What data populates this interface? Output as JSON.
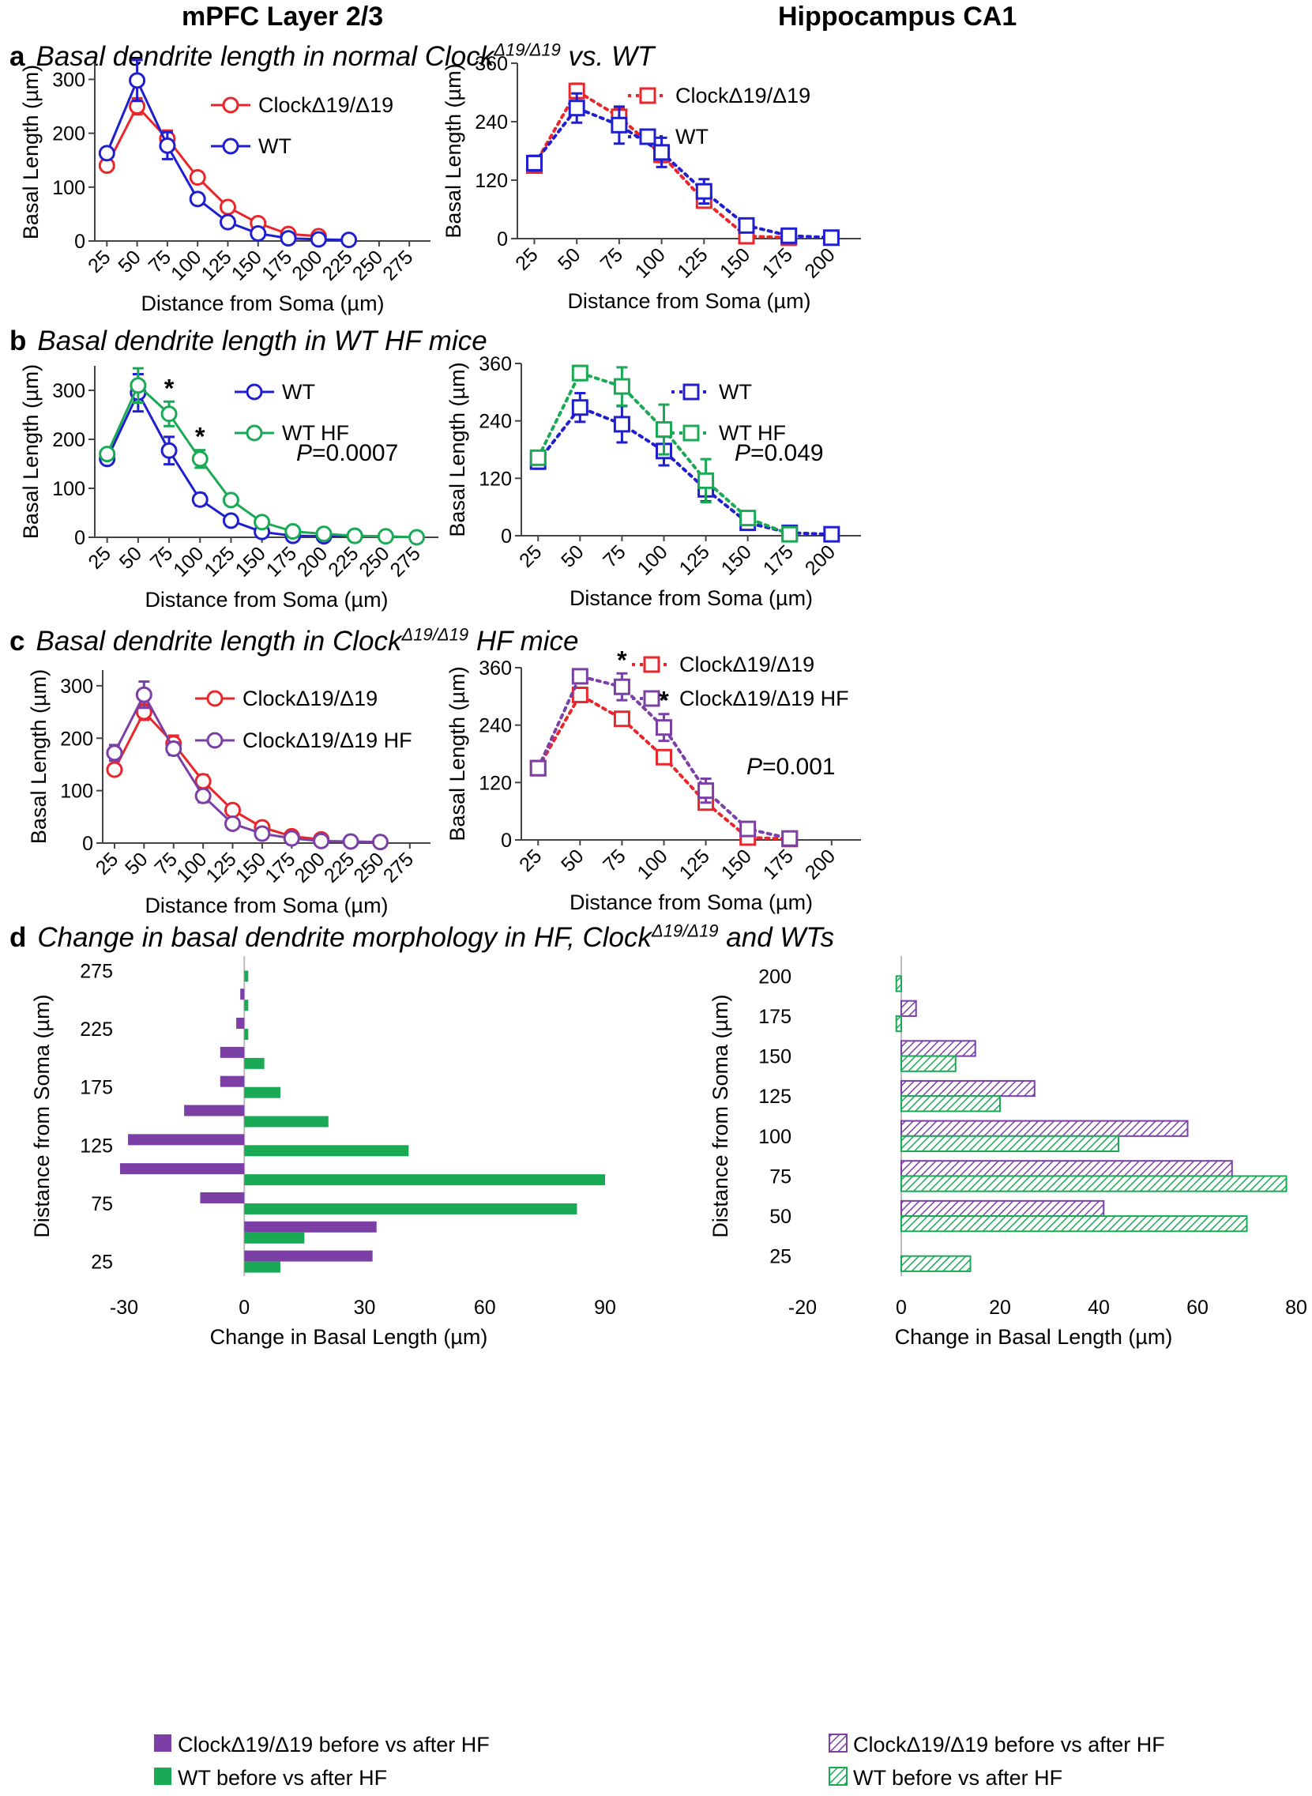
{
  "figure": {
    "columns": {
      "left": "mPFC Layer 2/3",
      "right": "Hippocampus CA1"
    },
    "panels": [
      {
        "letter": "a",
        "title": "Basal dendrite length in normal Clock",
        "sup": "Δ19/Δ19",
        "suffix": " vs. WT"
      },
      {
        "letter": "b",
        "title": "Basal dendrite length in WT HF mice",
        "sup": "",
        "suffix": ""
      },
      {
        "letter": "c",
        "title": "Basal dendrite length in Clock",
        "sup": "Δ19/Δ19",
        "suffix": " HF mice"
      },
      {
        "letter": "d",
        "title": "Change in basal dendrite morphology in HF, Clock",
        "sup": "Δ19/Δ19",
        "suffix": " and WTs"
      }
    ]
  },
  "chart_data": [
    {
      "id": "a-left",
      "type": "line",
      "xlabel": "Distance from Soma (µm)",
      "ylabel": "Basal Length (µm)",
      "categories": [
        "25",
        "50",
        "75",
        "100",
        "125",
        "150",
        "175",
        "200",
        "225",
        "250",
        "275"
      ],
      "ylim": [
        0,
        330
      ],
      "yticks": [
        0,
        100,
        200,
        300
      ],
      "legend_position": "top-right",
      "series": [
        {
          "name": "ClockΔ19/Δ19",
          "color": "#e8262b",
          "marker": "circle",
          "dash": "solid",
          "values": [
            140,
            250,
            190,
            118,
            63,
            33,
            13,
            9,
            null,
            null,
            null
          ],
          "errors": [
            5,
            15,
            15,
            10,
            7,
            5,
            3,
            3,
            null,
            null,
            null
          ]
        },
        {
          "name": "WT",
          "color": "#1f1fcf",
          "marker": "circle",
          "dash": "solid",
          "values": [
            163,
            298,
            177,
            78,
            35,
            14,
            5,
            3,
            2,
            null,
            null
          ],
          "errors": [
            7,
            38,
            25,
            10,
            5,
            4,
            2,
            2,
            1,
            null,
            null
          ]
        }
      ],
      "annotations": [],
      "pvalue": ""
    },
    {
      "id": "a-right",
      "type": "line",
      "xlabel": "Distance from Soma (µm)",
      "ylabel": "Basal Length (µm)",
      "categories": [
        "25",
        "50",
        "75",
        "100",
        "125",
        "150",
        "175",
        "200"
      ],
      "ylim": [
        0,
        360
      ],
      "yticks": [
        0,
        120,
        240,
        360
      ],
      "legend_position": "top-right",
      "series": [
        {
          "name": "ClockΔ19/Δ19",
          "color": "#e8262b",
          "marker": "square",
          "dash": "dotted",
          "values": [
            150,
            303,
            250,
            172,
            78,
            5,
            2,
            null
          ],
          "errors": [
            12,
            15,
            18,
            15,
            10,
            3,
            2,
            null
          ]
        },
        {
          "name": "WT",
          "color": "#1f1fcf",
          "marker": "square",
          "dash": "dotted",
          "values": [
            155,
            268,
            233,
            177,
            97,
            27,
            6,
            2
          ],
          "errors": [
            15,
            30,
            38,
            30,
            25,
            12,
            4,
            1
          ]
        }
      ],
      "annotations": [],
      "pvalue": ""
    },
    {
      "id": "b-left",
      "type": "line",
      "xlabel": "Distance from Soma (µm)",
      "ylabel": "Basal Length (µm)",
      "categories": [
        "25",
        "50",
        "75",
        "100",
        "125",
        "150",
        "175",
        "200",
        "225",
        "250",
        "275"
      ],
      "ylim": [
        0,
        350
      ],
      "yticks": [
        0,
        100,
        200,
        300
      ],
      "legend_position": "top-right",
      "series": [
        {
          "name": "WT",
          "color": "#1f1fcf",
          "marker": "circle",
          "dash": "solid",
          "values": [
            160,
            295,
            177,
            77,
            34,
            11,
            3,
            2,
            3,
            null,
            null
          ],
          "errors": [
            6,
            38,
            28,
            12,
            5,
            4,
            2,
            1,
            1,
            null,
            null
          ]
        },
        {
          "name": "WT HF",
          "color": "#1aaa55",
          "marker": "circle",
          "dash": "solid",
          "values": [
            170,
            310,
            252,
            160,
            76,
            31,
            12,
            7,
            3,
            2,
            0
          ],
          "errors": [
            8,
            35,
            25,
            18,
            8,
            8,
            4,
            3,
            2,
            1,
            0
          ]
        }
      ],
      "annotations": [
        {
          "text": "*",
          "category": "75"
        },
        {
          "text": "*",
          "category": "100"
        }
      ],
      "pvalue": "=0.0007"
    },
    {
      "id": "b-right",
      "type": "line",
      "xlabel": "Distance from Soma (µm)",
      "ylabel": "Basal Length (µm)",
      "categories": [
        "25",
        "50",
        "75",
        "100",
        "125",
        "150",
        "175",
        "200"
      ],
      "ylim": [
        0,
        360
      ],
      "yticks": [
        0,
        120,
        240,
        360
      ],
      "legend_position": "top-right",
      "series": [
        {
          "name": "WT",
          "color": "#1f1fcf",
          "marker": "square",
          "dash": "dotted",
          "values": [
            155,
            268,
            233,
            177,
            97,
            27,
            6,
            3
          ],
          "errors": [
            15,
            30,
            38,
            30,
            25,
            12,
            4,
            1
          ]
        },
        {
          "name": "WT HF",
          "color": "#1aaa55",
          "marker": "square",
          "dash": "dotted",
          "values": [
            163,
            340,
            312,
            222,
            115,
            37,
            3,
            null
          ],
          "errors": [
            10,
            15,
            40,
            52,
            45,
            12,
            2,
            null
          ]
        }
      ],
      "annotations": [],
      "pvalue": "=0.049"
    },
    {
      "id": "c-left",
      "type": "line",
      "xlabel": "Distance from Soma (µm)",
      "ylabel": "Basal Length (µm)",
      "categories": [
        "25",
        "50",
        "75",
        "100",
        "125",
        "150",
        "175",
        "200",
        "225",
        "250",
        "275"
      ],
      "ylim": [
        0,
        330
      ],
      "yticks": [
        0,
        100,
        200,
        300
      ],
      "legend_position": "top-right",
      "series": [
        {
          "name": "ClockΔ19/Δ19",
          "color": "#e8262b",
          "marker": "circle",
          "dash": "solid",
          "values": [
            140,
            250,
            190,
            118,
            63,
            30,
            13,
            7,
            null,
            null,
            null
          ],
          "errors": [
            5,
            15,
            15,
            12,
            7,
            5,
            3,
            2,
            null,
            null,
            null
          ]
        },
        {
          "name": "ClockΔ19/Δ19 HF",
          "color": "#7b3fa6",
          "marker": "circle",
          "dash": "solid",
          "values": [
            172,
            283,
            180,
            90,
            37,
            18,
            9,
            4,
            3,
            2,
            null
          ],
          "errors": [
            15,
            25,
            12,
            12,
            5,
            4,
            3,
            2,
            1,
            1,
            null
          ]
        }
      ],
      "annotations": [],
      "pvalue": ""
    },
    {
      "id": "c-right",
      "type": "line",
      "xlabel": "Distance from Soma (µm)",
      "ylabel": "Basal Length (µm)",
      "categories": [
        "25",
        "50",
        "75",
        "100",
        "125",
        "150",
        "175",
        "200"
      ],
      "ylim": [
        0,
        360
      ],
      "yticks": [
        0,
        120,
        240,
        360
      ],
      "legend_position": "top-right",
      "series": [
        {
          "name": "ClockΔ19/Δ19",
          "color": "#e8262b",
          "marker": "square",
          "dash": "dotted",
          "values": [
            150,
            303,
            253,
            173,
            78,
            5,
            2,
            null
          ],
          "errors": [
            8,
            15,
            10,
            10,
            8,
            3,
            2,
            null
          ]
        },
        {
          "name": "ClockΔ19/Δ19 HF",
          "color": "#7b3fa6",
          "marker": "square",
          "dash": "dotted",
          "values": [
            150,
            342,
            320,
            235,
            103,
            23,
            3,
            null
          ],
          "errors": [
            8,
            12,
            28,
            28,
            25,
            8,
            2,
            null
          ]
        }
      ],
      "annotations": [
        {
          "text": "*",
          "category": "75"
        },
        {
          "text": "*",
          "category": "100"
        }
      ],
      "pvalue": "=0.001"
    },
    {
      "id": "d-left",
      "type": "bar",
      "orientation": "horizontal",
      "xlabel": "Change in Basal Length (µm)",
      "ylabel": "Distance from Soma (µm)",
      "categories": [
        "25",
        "50",
        "75",
        "100",
        "125",
        "150",
        "175",
        "200",
        "225",
        "250",
        "275"
      ],
      "ytick_labels": [
        "25",
        "75",
        "125",
        "175",
        "225",
        "275"
      ],
      "xlim": [
        -30,
        90
      ],
      "xticks": [
        -30,
        0,
        30,
        60,
        90
      ],
      "legend_position": "bottom",
      "series": [
        {
          "name": "ClockΔ19/Δ19 before vs after HF",
          "color": "#7b3fa6",
          "pattern": "solid",
          "values": [
            32,
            33,
            -11,
            -31,
            -29,
            -15,
            -6,
            -6,
            -2,
            -1,
            0
          ]
        },
        {
          "name": "WT before vs after HF",
          "color": "#1aaa55",
          "pattern": "solid",
          "values": [
            9,
            15,
            83,
            90,
            41,
            21,
            9,
            5,
            1,
            1,
            1
          ]
        }
      ]
    },
    {
      "id": "d-right",
      "type": "bar",
      "orientation": "horizontal",
      "xlabel": "Change in Basal Length (µm)",
      "ylabel": "Distance from Soma (µm)",
      "categories": [
        "25",
        "50",
        "75",
        "100",
        "125",
        "150",
        "175",
        "200"
      ],
      "ytick_labels": [
        "25",
        "50",
        "75",
        "100",
        "125",
        "150",
        "175",
        "200"
      ],
      "xlim": [
        -20,
        80
      ],
      "xticks": [
        -20,
        0,
        20,
        40,
        60,
        80
      ],
      "legend_position": "bottom",
      "series": [
        {
          "name": "ClockΔ19/Δ19 before vs after HF",
          "color": "#7b3fa6",
          "pattern": "hatched",
          "values": [
            0,
            41,
            67,
            58,
            27,
            15,
            3,
            0
          ]
        },
        {
          "name": "WT before vs after HF",
          "color": "#1aaa55",
          "pattern": "hatched",
          "values": [
            14,
            70,
            78,
            44,
            20,
            11,
            -1,
            -1
          ]
        }
      ]
    }
  ]
}
